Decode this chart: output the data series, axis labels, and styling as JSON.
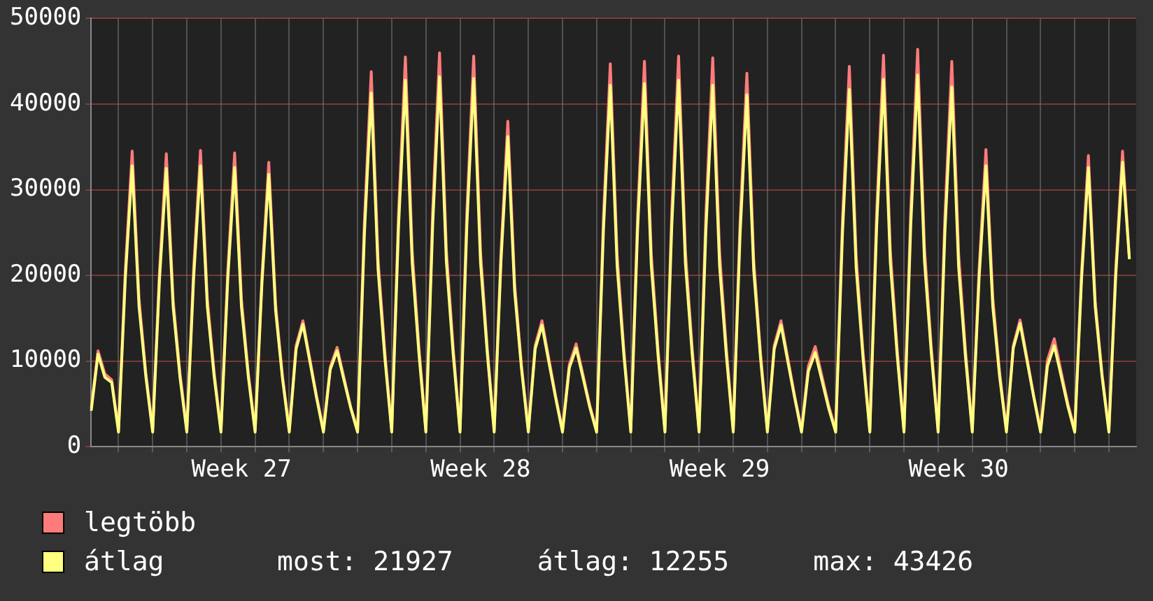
{
  "chart_data": {
    "type": "line",
    "legend": "bottom",
    "grid": true,
    "categories": [
      null,
      null,
      null,
      null,
      null,
      null,
      null,
      null,
      null,
      null,
      null,
      null,
      null,
      null,
      null,
      null,
      null,
      null,
      null,
      null,
      null,
      null,
      "Week 27",
      null,
      null,
      null,
      null,
      null,
      null,
      null,
      null,
      null,
      null,
      null,
      null,
      null,
      null,
      null,
      null,
      null,
      null,
      null,
      null,
      null,
      null,
      null,
      null,
      null,
      null,
      null,
      null,
      null,
      null,
      null,
      null,
      null,
      null,
      "Week 28",
      null,
      null,
      null,
      null,
      null,
      null,
      null,
      null,
      null,
      null,
      null,
      null,
      null,
      null,
      null,
      null,
      null,
      null,
      null,
      null,
      null,
      null,
      null,
      null,
      null,
      null,
      null,
      null,
      null,
      null,
      null,
      null,
      null,
      null,
      "Week 29",
      null,
      null,
      null,
      null,
      null,
      null,
      null,
      null,
      null,
      null,
      null,
      null,
      null,
      null,
      null,
      null,
      null,
      null,
      null,
      null,
      null,
      null,
      null,
      null,
      null,
      null,
      null,
      null,
      null,
      null,
      null,
      null,
      null,
      null,
      "Week 30",
      null,
      null,
      null,
      null,
      null,
      null,
      null,
      null,
      null,
      null,
      null,
      null,
      null,
      null,
      null,
      null,
      null,
      null,
      null,
      null,
      null,
      null,
      null,
      null,
      null,
      null
    ],
    "series": [
      {
        "name": "legtöbb",
        "color": "#ff7b7b",
        "values": [
          4500,
          11200,
          8500,
          7800,
          2000,
          20700,
          34500,
          17300,
          8600,
          2000,
          20500,
          34200,
          17100,
          8600,
          2000,
          20800,
          34600,
          17300,
          8700,
          2000,
          20600,
          34300,
          17200,
          8600,
          2000,
          19900,
          33200,
          16600,
          8300,
          2000,
          11800,
          14700,
          10300,
          5900,
          2000,
          9300,
          11600,
          8100,
          4600,
          2000,
          26300,
          43800,
          21900,
          11000,
          2000,
          27300,
          45500,
          22800,
          11400,
          2000,
          27600,
          46000,
          23000,
          11500,
          2000,
          27400,
          45600,
          22800,
          11400,
          2000,
          22800,
          38000,
          19000,
          9500,
          2000,
          11800,
          14700,
          10300,
          5900,
          2000,
          9600,
          12000,
          8400,
          4800,
          2000,
          26800,
          44700,
          22400,
          11200,
          2000,
          27000,
          45000,
          22500,
          11300,
          2000,
          27400,
          45600,
          22800,
          11400,
          2000,
          27200,
          45400,
          22700,
          11400,
          2000,
          26200,
          43600,
          21800,
          10900,
          2000,
          11800,
          14700,
          10300,
          5900,
          2000,
          9400,
          11700,
          8200,
          4700,
          2000,
          26600,
          44400,
          22200,
          11100,
          2000,
          27400,
          45700,
          22900,
          11400,
          2000,
          27800,
          46400,
          23200,
          11600,
          2000,
          27000,
          45000,
          22500,
          11300,
          2000,
          20800,
          34700,
          17400,
          8700,
          2000,
          11800,
          14800,
          10400,
          5900,
          2000,
          10100,
          12600,
          8800,
          5000,
          2000,
          20400,
          34000,
          17000,
          8500,
          2000,
          20700,
          34500,
          22000,
          null
        ]
      },
      {
        "name": "átlag",
        "color": "#ffff80",
        "values": [
          4200,
          10800,
          8100,
          7500,
          1700,
          19700,
          32800,
          16400,
          8200,
          1700,
          19500,
          32500,
          16300,
          8100,
          1700,
          19700,
          32800,
          16400,
          8200,
          1700,
          19600,
          32600,
          16300,
          8200,
          1700,
          19100,
          31800,
          15900,
          8000,
          1700,
          11400,
          14300,
          10000,
          5700,
          1700,
          9000,
          11200,
          7800,
          4500,
          1700,
          24800,
          41300,
          20700,
          10300,
          1700,
          25700,
          42800,
          21400,
          10700,
          1700,
          25900,
          43200,
          21600,
          10800,
          1700,
          25800,
          43000,
          21500,
          10800,
          1700,
          21700,
          36200,
          18100,
          9100,
          1700,
          11400,
          14200,
          9900,
          5700,
          1700,
          9200,
          11500,
          8100,
          4600,
          1700,
          25300,
          42200,
          21100,
          10600,
          1700,
          25400,
          42400,
          21200,
          10600,
          1700,
          25700,
          42800,
          21400,
          10700,
          1700,
          25300,
          42200,
          21100,
          10600,
          1700,
          24700,
          41100,
          20600,
          10300,
          1700,
          11400,
          14200,
          9900,
          5700,
          1700,
          8800,
          11000,
          7700,
          4400,
          1700,
          25000,
          41700,
          20900,
          10400,
          1700,
          25700,
          42900,
          21500,
          10700,
          1700,
          26000,
          43400,
          21700,
          10900,
          1700,
          25200,
          42000,
          21000,
          10500,
          1700,
          19700,
          32800,
          16400,
          8200,
          1700,
          11500,
          14400,
          10100,
          5800,
          1700,
          9400,
          11800,
          8300,
          4700,
          1700,
          19600,
          32600,
          16300,
          8200,
          1700,
          19900,
          33200,
          21900,
          null
        ]
      }
    ],
    "ylim": [
      0,
      50000
    ],
    "yticks": [
      0,
      10000,
      20000,
      30000,
      40000,
      50000
    ],
    "annotations": [
      "most: 21927",
      "átlag: 12255",
      "max: 43426"
    ]
  }
}
